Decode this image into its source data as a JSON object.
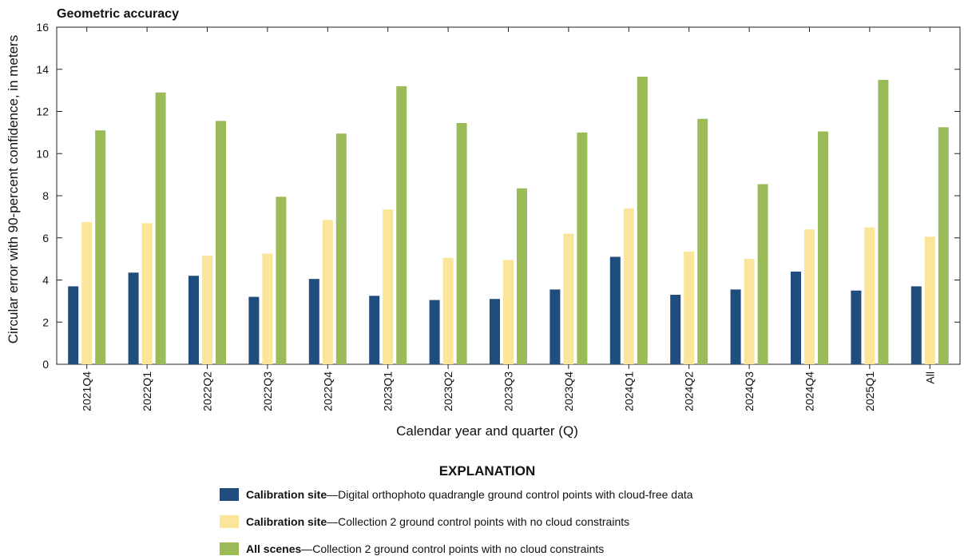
{
  "chart_data": {
    "type": "bar",
    "title": "Geometric accuracy",
    "xlabel": "Calendar year and quarter (Q)",
    "ylabel": "Circular error with 90-percent confidence, in meters",
    "ylim": [
      0,
      16
    ],
    "yticks": [
      0,
      2,
      4,
      6,
      8,
      10,
      12,
      14,
      16
    ],
    "grid": false,
    "categories": [
      "2021Q4",
      "2022Q1",
      "2022Q2",
      "2022Q3",
      "2022Q4",
      "2023Q1",
      "2023Q2",
      "2023Q3",
      "2023Q4",
      "2024Q1",
      "2024Q2",
      "2024Q3",
      "2024Q4",
      "2025Q1",
      "All"
    ],
    "series": [
      {
        "key": "cal_dig",
        "name": "Calibration site",
        "description": "—Digital orthophoto quadrangle ground control points with cloud-free data",
        "color": "#1f4e7e",
        "values": [
          3.7,
          4.35,
          4.2,
          3.2,
          4.05,
          3.25,
          3.05,
          3.1,
          3.55,
          5.1,
          3.3,
          3.55,
          4.4,
          3.5,
          3.7
        ]
      },
      {
        "key": "cal_c2",
        "name": "Calibration site",
        "description": "—Collection 2 ground control points with no cloud constraints",
        "color": "#fae59a",
        "values": [
          6.75,
          6.7,
          5.15,
          5.25,
          6.85,
          7.35,
          5.05,
          4.95,
          6.2,
          7.4,
          5.35,
          5.0,
          6.4,
          6.5,
          6.05
        ]
      },
      {
        "key": "all_c2",
        "name": "All scenes",
        "description": "—Collection 2 ground control points with no cloud constraints",
        "color": "#9bbb59",
        "values": [
          11.1,
          12.9,
          11.55,
          7.95,
          10.95,
          13.2,
          11.45,
          8.35,
          11.0,
          13.65,
          11.65,
          8.55,
          11.05,
          13.5,
          11.25
        ]
      }
    ],
    "legend_title": "EXPLANATION",
    "legend_position": "bottom"
  }
}
